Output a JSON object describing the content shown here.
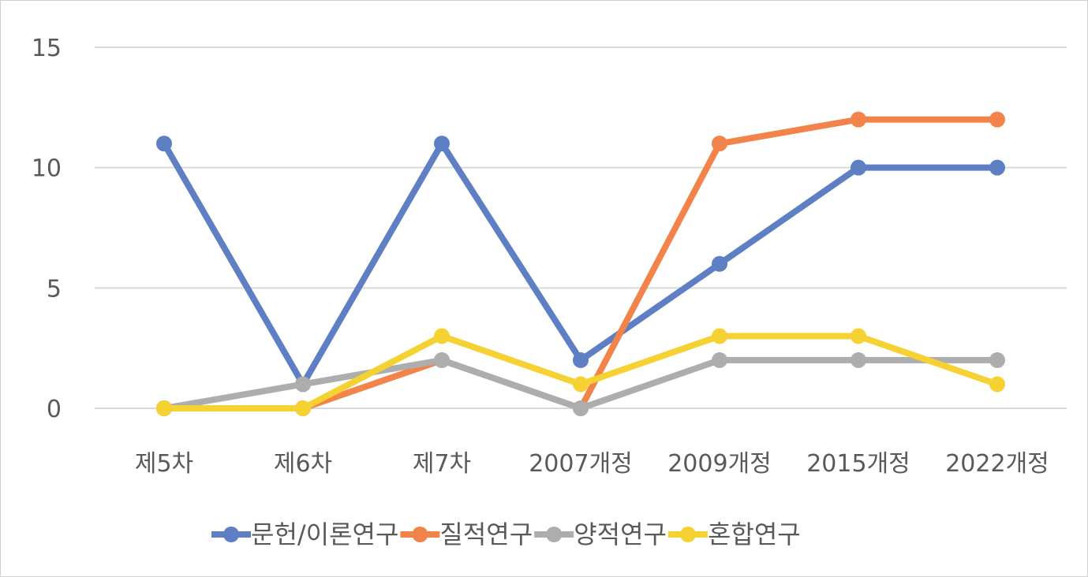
{
  "chart_data": {
    "type": "line",
    "categories": [
      "제5차",
      "제6차",
      "제7차",
      "2007개정",
      "2009개정",
      "2015개정",
      "2022개정"
    ],
    "series": [
      {
        "name": "문헌/이론연구",
        "color": "#5F7FC4",
        "values": [
          11,
          1,
          11,
          2,
          6,
          10,
          10
        ]
      },
      {
        "name": "질적연구",
        "color": "#F2834A",
        "values": [
          0,
          0,
          2,
          0,
          11,
          12,
          12
        ]
      },
      {
        "name": "양적연구",
        "color": "#ADADAD",
        "values": [
          0,
          1,
          2,
          0,
          2,
          2,
          2
        ]
      },
      {
        "name": "혼합연구",
        "color": "#F5D232",
        "values": [
          0,
          0,
          3,
          1,
          3,
          3,
          1
        ]
      }
    ],
    "ylim": [
      0,
      15
    ],
    "yticks": [
      0,
      5,
      10,
      15
    ],
    "grid": true,
    "legend": "bottom",
    "title": "",
    "xlabel": "",
    "ylabel": ""
  }
}
